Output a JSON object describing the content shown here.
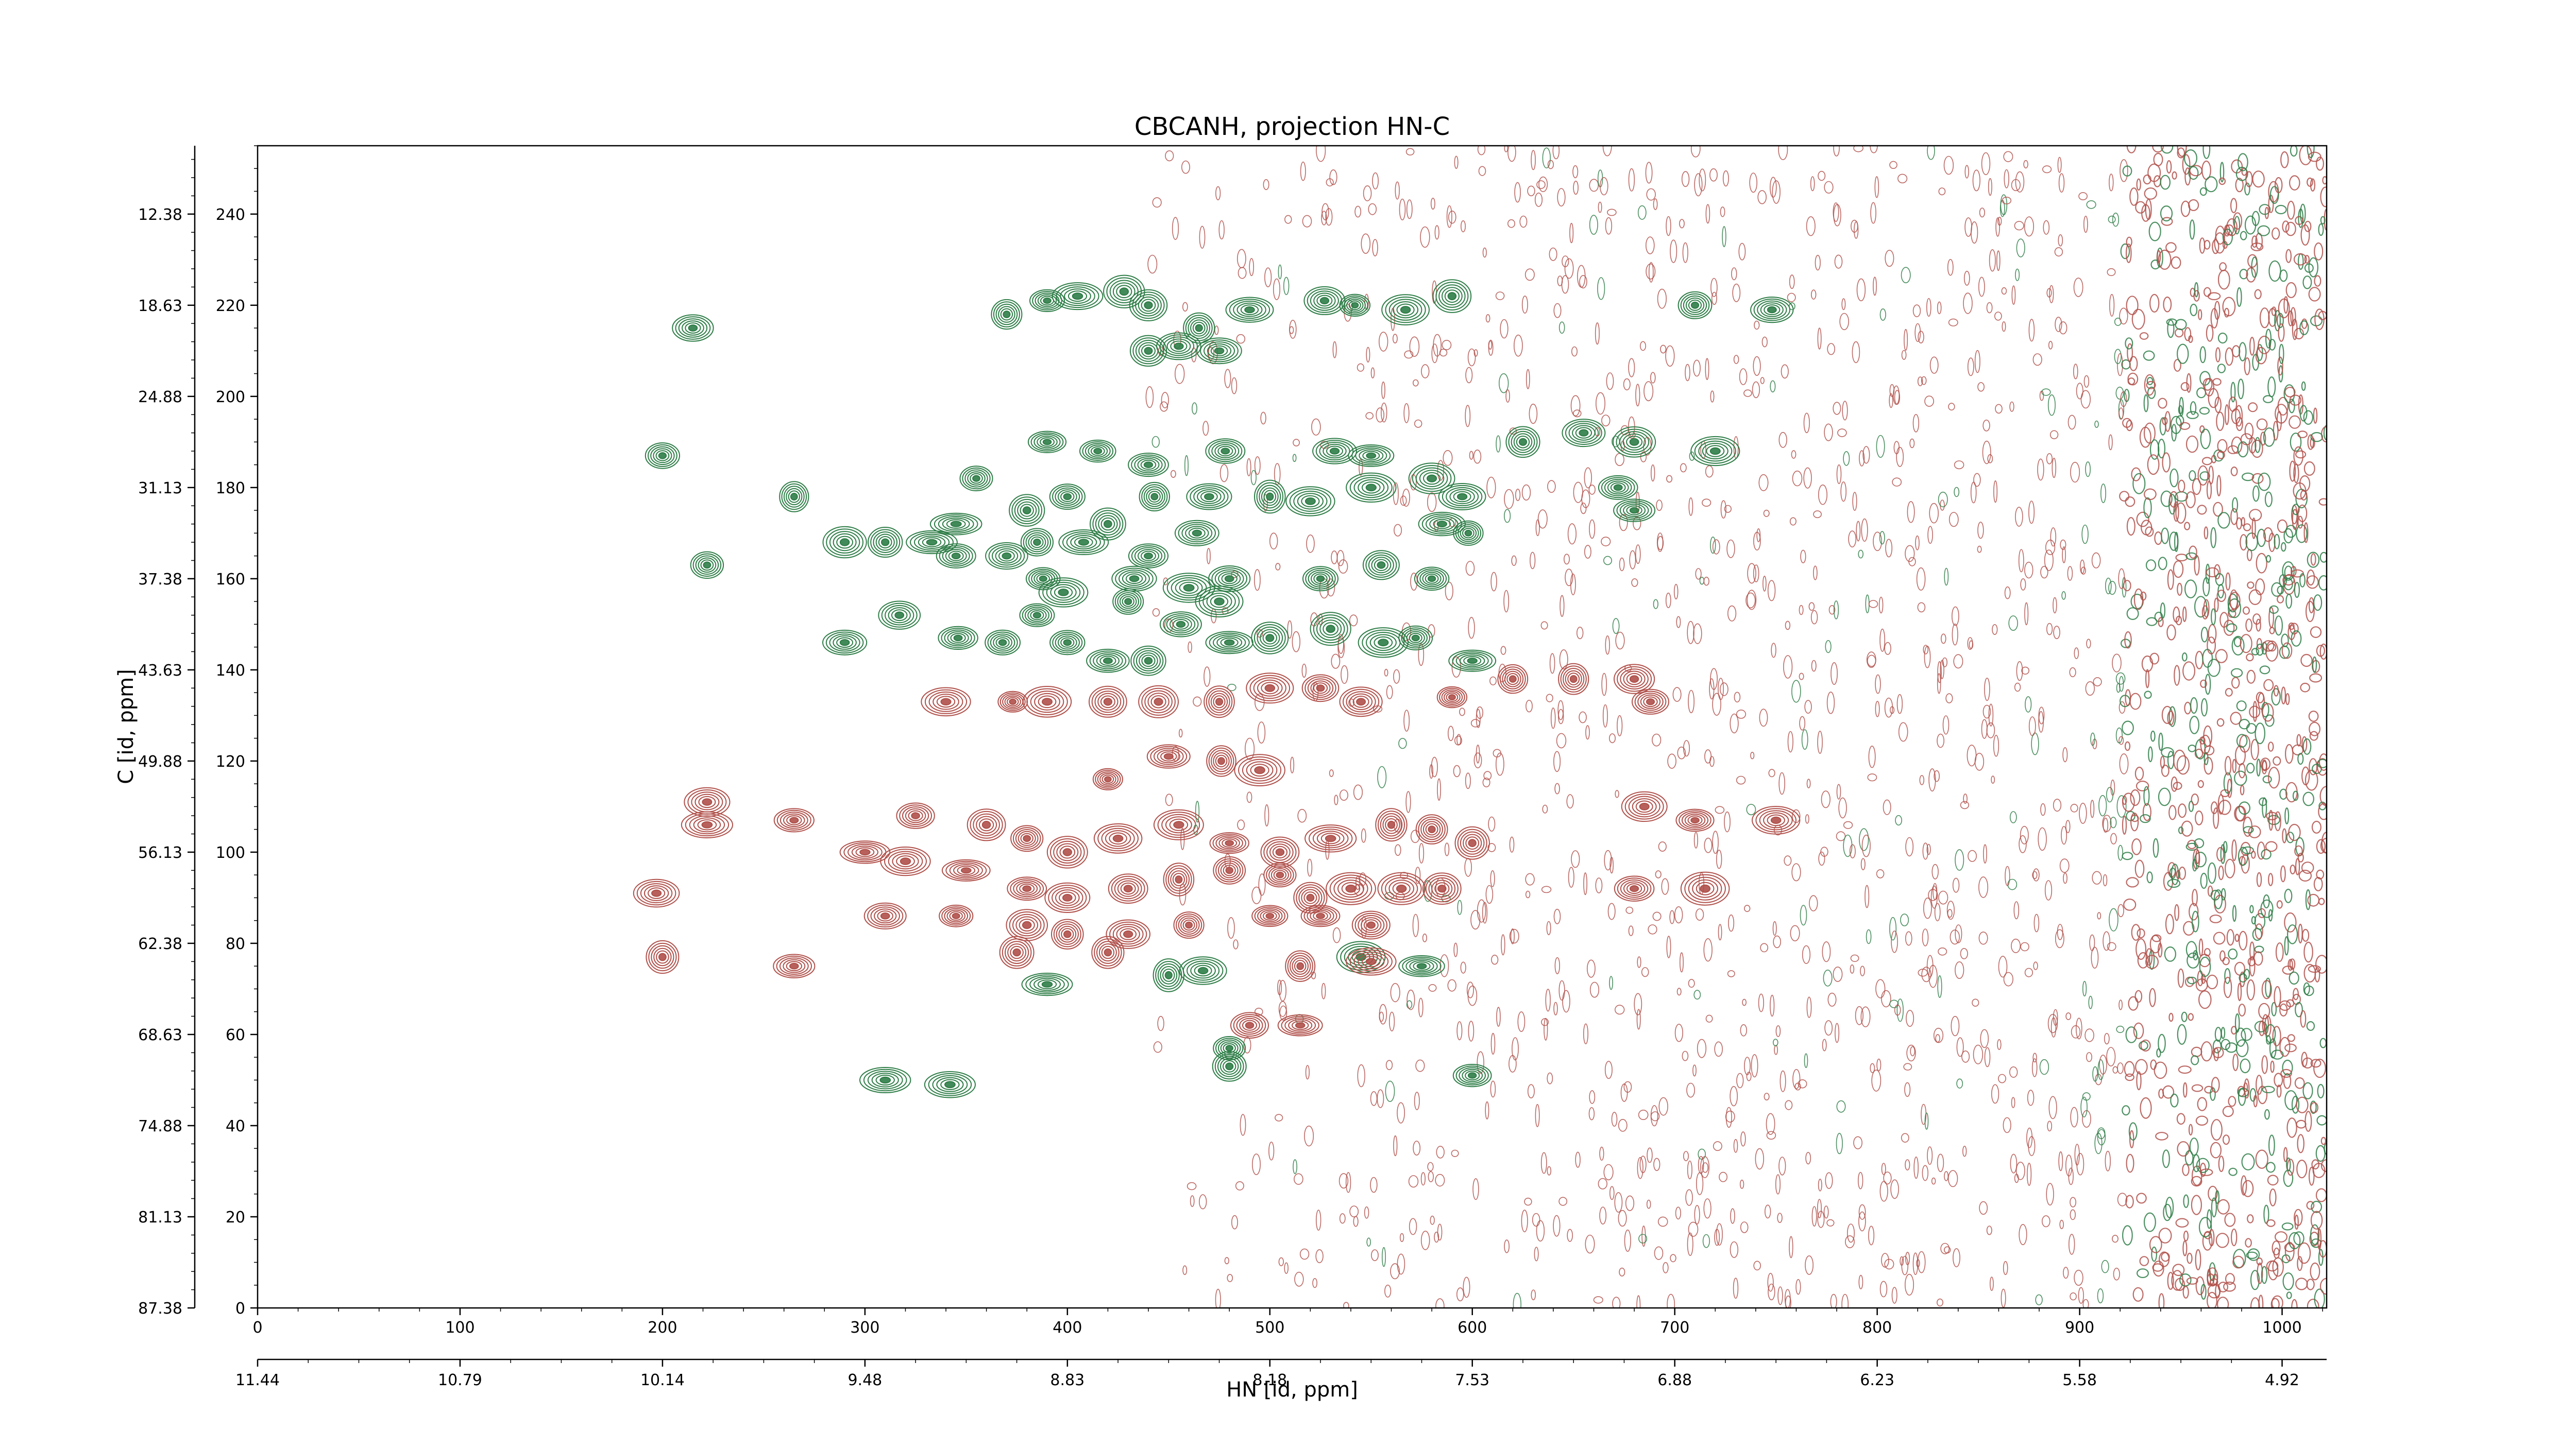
{
  "chart_data": {
    "type": "contour",
    "title": "CBCANH, projection HN-C",
    "xlabel": "HN [id, ppm]",
    "ylabel": "C [id, ppm]",
    "x_index_ticks": [
      "0",
      "100",
      "200",
      "300",
      "400",
      "500",
      "600",
      "700",
      "800",
      "900",
      "1000"
    ],
    "x_ppm_ticks": [
      "11.44",
      "10.79",
      "10.14",
      "9.48",
      "8.83",
      "8.18",
      "7.53",
      "6.88",
      "6.23",
      "5.58",
      "4.92"
    ],
    "y_index_ticks": [
      "0",
      "20",
      "40",
      "60",
      "80",
      "100",
      "120",
      "140",
      "160",
      "180",
      "200",
      "220",
      "240"
    ],
    "y_ppm_ticks": [
      "87.38",
      "81.13",
      "74.88",
      "68.63",
      "62.38",
      "56.13",
      "49.88",
      "43.63",
      "37.38",
      "31.13",
      "24.88",
      "18.63",
      "12.38"
    ],
    "xlim": [
      0,
      1022
    ],
    "ylim": [
      0,
      255
    ],
    "grid": false,
    "colors": {
      "positive": "#2e7d47",
      "negative": "#b0504a"
    },
    "series": [
      {
        "sign": "positive",
        "peaks": [
          [
            215,
            215
          ],
          [
            370,
            218
          ],
          [
            390,
            221
          ],
          [
            405,
            222
          ],
          [
            428,
            223
          ],
          [
            440,
            220
          ],
          [
            465,
            215
          ],
          [
            490,
            219
          ],
          [
            527,
            221
          ],
          [
            542,
            220
          ],
          [
            567,
            219
          ],
          [
            590,
            222
          ],
          [
            710,
            220
          ],
          [
            748,
            219
          ],
          [
            440,
            210
          ],
          [
            455,
            211
          ],
          [
            475,
            210
          ],
          [
            200,
            187
          ],
          [
            625,
            190
          ],
          [
            655,
            192
          ],
          [
            680,
            190
          ],
          [
            720,
            188
          ],
          [
            390,
            190
          ],
          [
            415,
            188
          ],
          [
            440,
            185
          ],
          [
            478,
            188
          ],
          [
            532,
            188
          ],
          [
            550,
            187
          ],
          [
            265,
            178
          ],
          [
            290,
            168
          ],
          [
            310,
            168
          ],
          [
            345,
            172
          ],
          [
            355,
            182
          ],
          [
            380,
            175
          ],
          [
            400,
            178
          ],
          [
            420,
            172
          ],
          [
            443,
            178
          ],
          [
            470,
            178
          ],
          [
            500,
            178
          ],
          [
            520,
            177
          ],
          [
            550,
            180
          ],
          [
            580,
            182
          ],
          [
            595,
            178
          ],
          [
            672,
            180
          ],
          [
            680,
            175
          ],
          [
            333,
            168
          ],
          [
            345,
            165
          ],
          [
            370,
            165
          ],
          [
            385,
            168
          ],
          [
            408,
            168
          ],
          [
            440,
            165
          ],
          [
            464,
            170
          ],
          [
            585,
            172
          ],
          [
            598,
            170
          ],
          [
            222,
            163
          ],
          [
            388,
            160
          ],
          [
            433,
            160
          ],
          [
            460,
            158
          ],
          [
            480,
            160
          ],
          [
            525,
            160
          ],
          [
            555,
            163
          ],
          [
            580,
            160
          ],
          [
            385,
            152
          ],
          [
            398,
            157
          ],
          [
            430,
            155
          ],
          [
            456,
            150
          ],
          [
            475,
            155
          ],
          [
            290,
            146
          ],
          [
            317,
            152
          ],
          [
            346,
            147
          ],
          [
            368,
            146
          ],
          [
            400,
            146
          ],
          [
            420,
            142
          ],
          [
            440,
            142
          ],
          [
            480,
            146
          ],
          [
            500,
            147
          ],
          [
            530,
            149
          ],
          [
            556,
            146
          ],
          [
            572,
            147
          ],
          [
            600,
            142
          ],
          [
            310,
            50
          ],
          [
            342,
            49
          ],
          [
            390,
            71
          ],
          [
            450,
            73
          ],
          [
            467,
            74
          ],
          [
            545,
            77
          ],
          [
            575,
            75
          ],
          [
            600,
            51
          ],
          [
            480,
            53
          ],
          [
            480,
            57
          ]
        ]
      },
      {
        "sign": "negative",
        "peaks": [
          [
            222,
            111
          ],
          [
            222,
            106
          ],
          [
            265,
            107
          ],
          [
            325,
            108
          ],
          [
            360,
            106
          ],
          [
            380,
            103
          ],
          [
            400,
            100
          ],
          [
            425,
            103
          ],
          [
            455,
            106
          ],
          [
            480,
            102
          ],
          [
            505,
            100
          ],
          [
            530,
            103
          ],
          [
            560,
            106
          ],
          [
            580,
            105
          ],
          [
            600,
            102
          ],
          [
            685,
            110
          ],
          [
            710,
            107
          ],
          [
            750,
            107
          ],
          [
            300,
            100
          ],
          [
            320,
            98
          ],
          [
            350,
            96
          ],
          [
            380,
            92
          ],
          [
            400,
            90
          ],
          [
            430,
            92
          ],
          [
            455,
            94
          ],
          [
            480,
            96
          ],
          [
            505,
            95
          ],
          [
            520,
            90
          ],
          [
            540,
            92
          ],
          [
            565,
            92
          ],
          [
            585,
            92
          ],
          [
            680,
            92
          ],
          [
            715,
            92
          ],
          [
            310,
            86
          ],
          [
            345,
            86
          ],
          [
            380,
            84
          ],
          [
            400,
            82
          ],
          [
            430,
            82
          ],
          [
            460,
            84
          ],
          [
            500,
            86
          ],
          [
            525,
            86
          ],
          [
            550,
            84
          ],
          [
            197,
            91
          ],
          [
            200,
            77
          ],
          [
            265,
            75
          ],
          [
            375,
            78
          ],
          [
            420,
            78
          ],
          [
            515,
            75
          ],
          [
            550,
            76
          ],
          [
            490,
            62
          ],
          [
            515,
            62
          ],
          [
            390,
            133
          ],
          [
            420,
            133
          ],
          [
            445,
            133
          ],
          [
            475,
            133
          ],
          [
            500,
            136
          ],
          [
            525,
            136
          ],
          [
            545,
            133
          ],
          [
            590,
            134
          ],
          [
            620,
            138
          ],
          [
            650,
            138
          ],
          [
            680,
            138
          ],
          [
            688,
            133
          ],
          [
            373,
            133
          ],
          [
            340,
            133
          ],
          [
            450,
            121
          ],
          [
            476,
            120
          ],
          [
            495,
            118
          ],
          [
            420,
            116
          ]
        ]
      }
    ]
  }
}
